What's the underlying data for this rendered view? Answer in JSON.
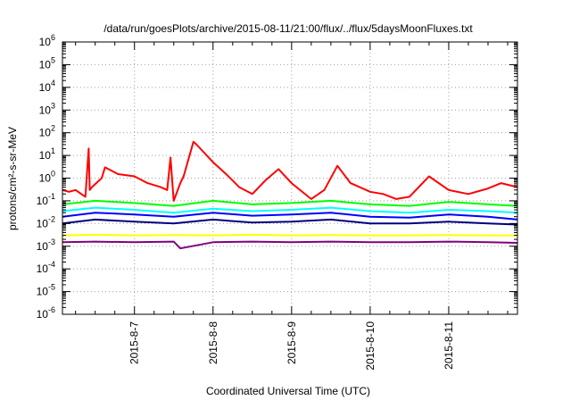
{
  "chart_data": {
    "type": "line",
    "title": "/data/run/goesPlots/archive/2015-08-11/21:00/flux/../flux/5daysMoonFluxes.txt",
    "xlabel": "Coordinated Universal Time (UTC)",
    "ylabel": "protons/cm²-s-sr-MeV",
    "y_scale": "log",
    "ylim": [
      1e-06,
      1000000.0
    ],
    "y_ticks": [
      {
        "base": "10",
        "exp": "-6"
      },
      {
        "base": "10",
        "exp": "-5"
      },
      {
        "base": "10",
        "exp": "-4"
      },
      {
        "base": "10",
        "exp": "-3"
      },
      {
        "base": "10",
        "exp": "-2"
      },
      {
        "base": "10",
        "exp": "-1"
      },
      {
        "base": "10",
        "exp": "0"
      },
      {
        "base": "10",
        "exp": "1"
      },
      {
        "base": "10",
        "exp": "2"
      },
      {
        "base": "10",
        "exp": "3"
      },
      {
        "base": "10",
        "exp": "4"
      },
      {
        "base": "10",
        "exp": "5"
      },
      {
        "base": "10",
        "exp": "6"
      }
    ],
    "xlim": [
      "2015-08-06 02:00",
      "2015-08-11 21:00"
    ],
    "x_ticks": [
      "2015-8-7",
      "2015-8-8",
      "2015-8-9",
      "2015-8-10",
      "2015-8-11"
    ],
    "grid": true,
    "series": [
      {
        "color": "#ff0000",
        "x": [
          "2015-08-06 02:00",
          "2015-08-06 04:00",
          "2015-08-06 06:00",
          "2015-08-06 09:00",
          "2015-08-06 10:00",
          "2015-08-06 10:20",
          "2015-08-06 11:00",
          "2015-08-06 14:00",
          "2015-08-06 15:00",
          "2015-08-06 19:00",
          "2015-08-07 00:00",
          "2015-08-07 04:00",
          "2015-08-07 08:00",
          "2015-08-07 10:00",
          "2015-08-07 11:00",
          "2015-08-07 12:00",
          "2015-08-07 14:00",
          "2015-08-07 15:00",
          "2015-08-07 18:00",
          "2015-08-07 19:00",
          "2015-08-08 00:00",
          "2015-08-08 04:00",
          "2015-08-08 08:00",
          "2015-08-08 12:00",
          "2015-08-08 16:00",
          "2015-08-08 20:00",
          "2015-08-09 00:00",
          "2015-08-09 06:00",
          "2015-08-09 10:00",
          "2015-08-09 14:00",
          "2015-08-09 18:00",
          "2015-08-10 00:00",
          "2015-08-10 04:00",
          "2015-08-10 08:00",
          "2015-08-10 12:00",
          "2015-08-10 18:00",
          "2015-08-11 00:00",
          "2015-08-11 06:00",
          "2015-08-11 12:00",
          "2015-08-11 16:00",
          "2015-08-11 21:00"
        ],
        "values": [
          0.3,
          0.25,
          0.3,
          0.15,
          20,
          0.3,
          0.4,
          1,
          3,
          1.5,
          1.2,
          0.6,
          0.4,
          0.3,
          8,
          0.1,
          0.6,
          1.2,
          40,
          30,
          5,
          1.5,
          0.4,
          0.2,
          0.8,
          2.5,
          0.6,
          0.12,
          0.3,
          3.5,
          0.6,
          0.25,
          0.2,
          0.12,
          0.15,
          1.2,
          0.3,
          0.2,
          0.35,
          0.6,
          0.4
        ]
      },
      {
        "color": "#00ff00",
        "x": [
          "2015-08-06 02:00",
          "2015-08-06 12:00",
          "2015-08-07 00:00",
          "2015-08-07 12:00",
          "2015-08-08 00:00",
          "2015-08-08 12:00",
          "2015-08-09 00:00",
          "2015-08-09 12:00",
          "2015-08-10 00:00",
          "2015-08-10 12:00",
          "2015-08-11 00:00",
          "2015-08-11 12:00",
          "2015-08-11 21:00"
        ],
        "values": [
          0.07,
          0.1,
          0.08,
          0.06,
          0.1,
          0.07,
          0.08,
          0.1,
          0.07,
          0.06,
          0.09,
          0.07,
          0.06
        ]
      },
      {
        "color": "#00ffff",
        "x": [
          "2015-08-06 02:00",
          "2015-08-06 12:00",
          "2015-08-07 00:00",
          "2015-08-07 12:00",
          "2015-08-08 00:00",
          "2015-08-08 12:00",
          "2015-08-09 00:00",
          "2015-08-09 12:00",
          "2015-08-10 00:00",
          "2015-08-10 12:00",
          "2015-08-11 00:00",
          "2015-08-11 12:00",
          "2015-08-11 21:00"
        ],
        "values": [
          0.035,
          0.05,
          0.04,
          0.03,
          0.045,
          0.035,
          0.04,
          0.05,
          0.035,
          0.03,
          0.04,
          0.035,
          0.03
        ]
      },
      {
        "color": "#0000ff",
        "x": [
          "2015-08-06 02:00",
          "2015-08-06 12:00",
          "2015-08-07 00:00",
          "2015-08-07 12:00",
          "2015-08-08 00:00",
          "2015-08-08 12:00",
          "2015-08-09 00:00",
          "2015-08-09 12:00",
          "2015-08-10 00:00",
          "2015-08-10 12:00",
          "2015-08-11 00:00",
          "2015-08-11 12:00",
          "2015-08-11 21:00"
        ],
        "values": [
          0.02,
          0.03,
          0.025,
          0.02,
          0.03,
          0.022,
          0.025,
          0.03,
          0.02,
          0.018,
          0.025,
          0.02,
          0.015
        ]
      },
      {
        "color": "#000080",
        "x": [
          "2015-08-06 02:00",
          "2015-08-06 12:00",
          "2015-08-07 00:00",
          "2015-08-07 12:00",
          "2015-08-08 00:00",
          "2015-08-08 12:00",
          "2015-08-09 00:00",
          "2015-08-09 12:00",
          "2015-08-10 00:00",
          "2015-08-10 12:00",
          "2015-08-11 00:00",
          "2015-08-11 12:00",
          "2015-08-11 21:00"
        ],
        "values": [
          0.01,
          0.015,
          0.012,
          0.01,
          0.015,
          0.011,
          0.012,
          0.015,
          0.01,
          0.01,
          0.012,
          0.01,
          0.009
        ]
      },
      {
        "color": "#ffff00",
        "x": [
          "2015-08-06 02:00",
          "2015-08-06 12:00",
          "2015-08-07 00:00",
          "2015-08-07 12:00",
          "2015-08-08 00:00",
          "2015-08-08 12:00",
          "2015-08-09 00:00",
          "2015-08-09 12:00",
          "2015-08-10 00:00",
          "2015-08-10 12:00",
          "2015-08-11 00:00",
          "2015-08-11 12:00",
          "2015-08-11 21:00"
        ],
        "values": [
          0.003,
          0.0032,
          0.003,
          0.0031,
          0.003,
          0.0032,
          0.003,
          0.0031,
          0.003,
          0.003,
          0.0031,
          0.003,
          0.003
        ]
      },
      {
        "color": "#800080",
        "x": [
          "2015-08-06 02:00",
          "2015-08-06 12:00",
          "2015-08-07 00:00",
          "2015-08-07 12:00",
          "2015-08-07 14:00",
          "2015-08-08 00:00",
          "2015-08-08 12:00",
          "2015-08-09 00:00",
          "2015-08-09 12:00",
          "2015-08-10 00:00",
          "2015-08-10 12:00",
          "2015-08-11 00:00",
          "2015-08-11 12:00",
          "2015-08-11 21:00"
        ],
        "values": [
          0.0015,
          0.0016,
          0.0015,
          0.0016,
          0.0008,
          0.0015,
          0.0016,
          0.0015,
          0.0016,
          0.0015,
          0.0015,
          0.0016,
          0.0015,
          0.0014
        ]
      }
    ]
  }
}
